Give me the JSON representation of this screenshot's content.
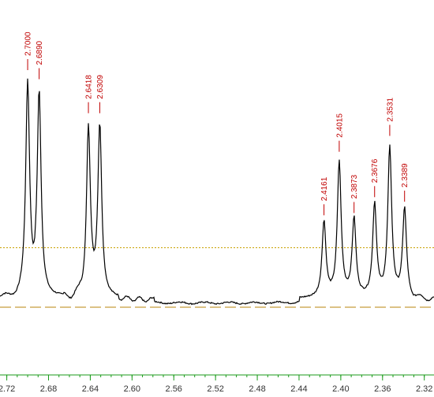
{
  "chart_data": {
    "type": "line",
    "title": "",
    "xlabel": "",
    "ylabel": "",
    "x_axis_reversed": true,
    "xlim": [
      2.7265,
      2.3107
    ],
    "ylim": [
      0,
      1
    ],
    "grid": false,
    "legend": "none",
    "x_ticks": [
      2.72,
      2.68,
      2.64,
      2.6,
      2.56,
      2.52,
      2.48,
      2.44,
      2.4,
      2.36,
      2.32
    ],
    "x_tick_labels": [
      "2.72",
      "2.68",
      "2.64",
      "2.60",
      "2.56",
      "2.52",
      "2.48",
      "2.44",
      "2.40",
      "2.36",
      "2.32"
    ],
    "baseline_level": 0.0,
    "threshold_level": 0.245,
    "peak_labels": [
      "2.7000",
      "2.6890",
      "2.6418",
      "2.6309",
      "2.4161",
      "2.4015",
      "2.3873",
      "2.3676",
      "2.3531",
      "2.3389"
    ],
    "peaks": [
      {
        "ppm": 2.7,
        "height": 1.0
      },
      {
        "ppm": 2.689,
        "height": 0.96
      },
      {
        "ppm": 2.6418,
        "height": 0.81
      },
      {
        "ppm": 2.6309,
        "height": 0.81
      },
      {
        "ppm": 2.4161,
        "height": 0.36
      },
      {
        "ppm": 2.4015,
        "height": 0.64
      },
      {
        "ppm": 2.3873,
        "height": 0.37
      },
      {
        "ppm": 2.3676,
        "height": 0.44
      },
      {
        "ppm": 2.3531,
        "height": 0.71
      },
      {
        "ppm": 2.3389,
        "height": 0.42
      }
    ]
  },
  "colors": {
    "spectrum": "#000000",
    "peak_label": "#c00000",
    "threshold_line": "#c8a000",
    "baseline_line": "#b8860b",
    "axis": "#1a9a1a",
    "tick_text": "#333333"
  }
}
